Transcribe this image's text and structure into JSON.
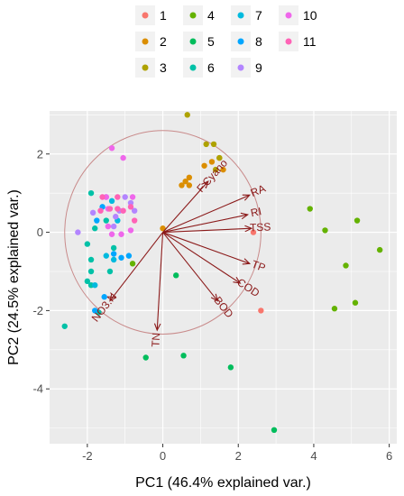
{
  "chart_data": {
    "type": "scatter",
    "subtype": "pca-biplot",
    "xlabel": "PC1 (46.4% explained var.)",
    "ylabel": "PC2 (24.5% explained var.)",
    "xlim": [
      -3.0,
      6.2
    ],
    "ylim": [
      -5.4,
      3.1
    ],
    "xticks": [
      -2,
      0,
      2,
      4,
      6
    ],
    "yticks": [
      -4,
      -2,
      0,
      2
    ],
    "grid": true,
    "background": "#ebebeb",
    "legend_position": "top",
    "circle": {
      "center": [
        0,
        0
      ],
      "radius": 2.6,
      "color": "#c98b8b"
    },
    "series": [
      {
        "name": "1",
        "color": "#f8766d",
        "points": [
          [
            2.6,
            -2.0
          ],
          [
            2.4,
            0.0
          ]
        ]
      },
      {
        "name": "2",
        "color": "#db8e00",
        "points": [
          [
            0.6,
            1.3
          ],
          [
            0.7,
            1.2
          ],
          [
            1.5,
            1.9
          ],
          [
            0.7,
            1.4
          ],
          [
            1.6,
            1.6
          ],
          [
            1.3,
            1.8
          ],
          [
            1.1,
            1.7
          ],
          [
            0.5,
            1.2
          ],
          [
            0.0,
            0.1
          ]
        ]
      },
      {
        "name": "3",
        "color": "#aea200",
        "points": [
          [
            0.65,
            3.0
          ],
          [
            1.15,
            2.25
          ],
          [
            1.35,
            2.25
          ],
          [
            1.5,
            1.9
          ],
          [
            1.4,
            1.6
          ]
        ]
      },
      {
        "name": "4",
        "color": "#64b200",
        "points": [
          [
            3.9,
            0.6
          ],
          [
            4.3,
            0.05
          ],
          [
            5.15,
            0.3
          ],
          [
            5.75,
            -0.45
          ],
          [
            4.85,
            -0.85
          ],
          [
            5.1,
            -1.8
          ],
          [
            4.55,
            -1.95
          ],
          [
            -0.8,
            -0.8
          ]
        ]
      },
      {
        "name": "5",
        "color": "#00bd5c",
        "points": [
          [
            0.35,
            -1.1
          ],
          [
            -0.45,
            -3.2
          ],
          [
            0.55,
            -3.15
          ],
          [
            1.8,
            -3.45
          ],
          [
            2.95,
            -5.05
          ]
        ]
      },
      {
        "name": "6",
        "color": "#00c1a7",
        "points": [
          [
            -2.6,
            -2.4
          ],
          [
            -1.9,
            -1.35
          ],
          [
            -2.0,
            -1.25
          ],
          [
            -1.9,
            -0.7
          ],
          [
            -2.0,
            -0.3
          ],
          [
            -1.8,
            0.1
          ],
          [
            -1.9,
            1.0
          ],
          [
            -1.9,
            -1.0
          ],
          [
            -1.7,
            -2.05
          ],
          [
            -1.4,
            -1.0
          ],
          [
            -1.5,
            0.3
          ],
          [
            -1.3,
            -0.4
          ]
        ]
      },
      {
        "name": "7",
        "color": "#00badE",
        "points": [
          [
            -1.5,
            -0.6
          ],
          [
            -1.8,
            -1.35
          ],
          [
            -1.35,
            0.8
          ],
          [
            -1.2,
            0.3
          ],
          [
            -1.3,
            -0.7
          ]
        ]
      },
      {
        "name": "8",
        "color": "#00a6ff",
        "points": [
          [
            -1.8,
            -2.0
          ],
          [
            -1.55,
            -1.65
          ],
          [
            -1.6,
            0.65
          ],
          [
            -1.3,
            -0.55
          ],
          [
            -1.1,
            -0.65
          ],
          [
            -0.9,
            -0.6
          ],
          [
            -1.75,
            0.3
          ]
        ]
      },
      {
        "name": "9",
        "color": "#b385ff",
        "points": [
          [
            -2.25,
            0.0
          ],
          [
            -1.85,
            0.5
          ],
          [
            -1.5,
            0.9
          ],
          [
            -1.25,
            0.4
          ],
          [
            -1.0,
            0.9
          ],
          [
            -0.75,
            0.55
          ],
          [
            -1.15,
            0.55
          ],
          [
            -1.3,
            0.15
          ],
          [
            -0.85,
            0.75
          ]
        ]
      },
      {
        "name": "10",
        "color": "#ef67eb",
        "points": [
          [
            -1.35,
            2.15
          ],
          [
            -1.05,
            1.9
          ],
          [
            -0.8,
            0.9
          ],
          [
            -1.45,
            0.15
          ],
          [
            -1.35,
            -0.05
          ],
          [
            -0.85,
            0.05
          ],
          [
            -1.5,
            0.9
          ],
          [
            -1.45,
            0.6
          ],
          [
            -1.1,
            -0.05
          ]
        ]
      },
      {
        "name": "11",
        "color": "#ff63b6",
        "points": [
          [
            -1.2,
            0.6
          ],
          [
            -1.05,
            0.55
          ],
          [
            -1.4,
            0.6
          ],
          [
            -1.65,
            0.55
          ],
          [
            -0.75,
            0.3
          ],
          [
            -1.6,
            0.9
          ],
          [
            -1.2,
            0.9
          ],
          [
            -0.85,
            0.65
          ]
        ]
      }
    ],
    "loadings": [
      {
        "name": "RA",
        "x": 2.3,
        "y": 0.95
      },
      {
        "name": "RI",
        "x": 2.25,
        "y": 0.45
      },
      {
        "name": "TSS",
        "x": 2.35,
        "y": 0.1
      },
      {
        "name": "TP",
        "x": 2.3,
        "y": -0.8
      },
      {
        "name": "COD",
        "x": 2.05,
        "y": -1.3
      },
      {
        "name": "BOD",
        "x": 1.45,
        "y": -1.75
      },
      {
        "name": "TN",
        "x": -0.15,
        "y": -2.5
      },
      {
        "name": "NO3.N",
        "x": -1.4,
        "y": -1.75
      },
      {
        "name": "F.Cyano",
        "x": 1.2,
        "y": 1.3
      }
    ]
  },
  "legend": {
    "items": [
      {
        "label": "1",
        "color": "#f8766d"
      },
      {
        "label": "2",
        "color": "#db8e00"
      },
      {
        "label": "3",
        "color": "#aea200"
      },
      {
        "label": "4",
        "color": "#64b200"
      },
      {
        "label": "5",
        "color": "#00bd5c"
      },
      {
        "label": "6",
        "color": "#00c1a7"
      },
      {
        "label": "7",
        "color": "#00badE"
      },
      {
        "label": "8",
        "color": "#00a6ff"
      },
      {
        "label": "9",
        "color": "#b385ff"
      },
      {
        "label": "10",
        "color": "#ef67eb"
      },
      {
        "label": "11",
        "color": "#ff63b6"
      }
    ]
  }
}
